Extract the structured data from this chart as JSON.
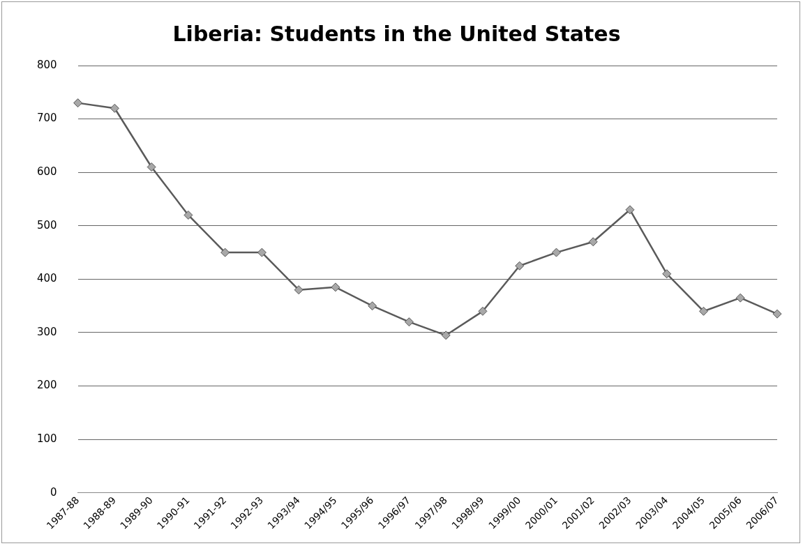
{
  "chart_data": {
    "type": "line",
    "title": "Liberia: Students in the United States",
    "categories": [
      "1987-88",
      "1988-89",
      "1989-90",
      "1990-91",
      "1991-92",
      "1992-93",
      "1993/94",
      "1994/95",
      "1995/96",
      "1996/97",
      "1997/98",
      "1998/99",
      "1999/00",
      "2000/01",
      "2001/02",
      "2002/03",
      "2003/04",
      "2004/05",
      "2005/06",
      "2006/07"
    ],
    "series": [
      {
        "color": "#5a5a5a",
        "values": [
          730,
          720,
          610,
          520,
          450,
          450,
          380,
          385,
          350,
          320,
          295,
          340,
          425,
          450,
          470,
          530,
          410,
          340,
          365,
          335
        ]
      }
    ],
    "ylim": [
      0,
      800
    ],
    "yticks": [
      0,
      100,
      200,
      300,
      400,
      500,
      600,
      700,
      800
    ],
    "grid": "y",
    "legend": false,
    "marker": "diamond",
    "line_style": "solid"
  }
}
